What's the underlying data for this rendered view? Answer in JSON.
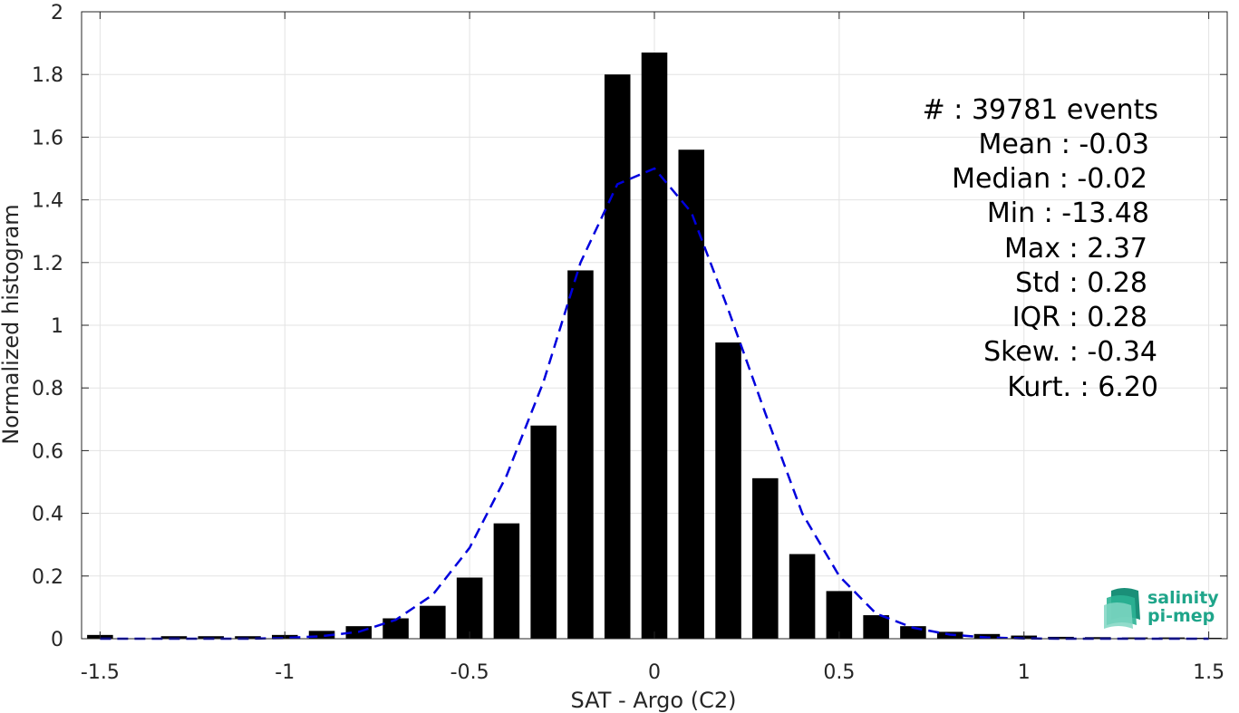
{
  "chart_data": {
    "type": "bar",
    "title": "",
    "xlabel": "SAT - Argo (C2)",
    "ylabel": "Normalized histogram",
    "xlim": [
      -1.55,
      1.55
    ],
    "ylim": [
      0,
      2
    ],
    "grid": true,
    "x_ticks": [
      -1.5,
      -1,
      -0.5,
      0,
      0.5,
      1,
      1.5
    ],
    "x_tick_labels": [
      "-1.5",
      "-1",
      "-0.5",
      "0",
      "0.5",
      "1",
      "1.5"
    ],
    "y_ticks": [
      0,
      0.2,
      0.4,
      0.6,
      0.8,
      1,
      1.2,
      1.4,
      1.6,
      1.8,
      2
    ],
    "y_tick_labels": [
      "0",
      "0.2",
      "0.4",
      "0.6",
      "0.8",
      "1",
      "1.2",
      "1.4",
      "1.6",
      "1.8",
      "2"
    ],
    "bin_width": 0.1,
    "series": [
      {
        "kind": "bar",
        "color": "#000000",
        "x": [
          -1.5,
          -1.3,
          -1.2,
          -1.1,
          -1.0,
          -0.9,
          -0.8,
          -0.7,
          -0.6,
          -0.5,
          -0.4,
          -0.3,
          -0.2,
          -0.1,
          0.0,
          0.1,
          0.2,
          0.3,
          0.4,
          0.5,
          0.6,
          0.7,
          0.8,
          0.9,
          1.0,
          1.1,
          1.2,
          1.3,
          1.4,
          1.5
        ],
        "values": [
          0.012,
          0.008,
          0.008,
          0.008,
          0.012,
          0.025,
          0.04,
          0.065,
          0.105,
          0.195,
          0.368,
          0.68,
          1.175,
          1.8,
          1.87,
          1.56,
          0.945,
          0.512,
          0.27,
          0.152,
          0.075,
          0.04,
          0.022,
          0.015,
          0.01,
          0.006,
          0.005,
          0.004,
          0.004,
          0.003
        ]
      },
      {
        "kind": "line",
        "style": "dashed",
        "color": "#0000dd",
        "x": [
          -1.5,
          -1.4,
          -1.3,
          -1.2,
          -1.1,
          -1.0,
          -0.9,
          -0.8,
          -0.7,
          -0.6,
          -0.5,
          -0.4,
          -0.3,
          -0.2,
          -0.1,
          0.0,
          0.1,
          0.2,
          0.3,
          0.4,
          0.5,
          0.6,
          0.7,
          0.8,
          0.9,
          1.0,
          1.1,
          1.2,
          1.3,
          1.4,
          1.5
        ],
        "values": [
          0.0,
          0.0,
          0.0,
          0.0,
          0.0,
          0.002,
          0.008,
          0.022,
          0.06,
          0.14,
          0.29,
          0.52,
          0.82,
          1.2,
          1.45,
          1.5,
          1.36,
          1.05,
          0.72,
          0.4,
          0.2,
          0.08,
          0.035,
          0.013,
          0.004,
          0.001,
          0.0,
          0.0,
          0.0,
          0.0,
          0.0
        ]
      }
    ]
  },
  "stats": {
    "events": "#  : 39781 events",
    "mean": "Mean : -0.03",
    "median": "Median : -0.02",
    "min": "Min : -13.48",
    "max": "Max : 2.37",
    "std": "Std : 0.28",
    "iqr": "IQR : 0.28",
    "skew": "Skew. : -0.34",
    "kurt": "Kurt. : 6.20"
  },
  "logo": {
    "line1": "salinity",
    "line2": "pi-mep",
    "color": "#1fa58a"
  }
}
